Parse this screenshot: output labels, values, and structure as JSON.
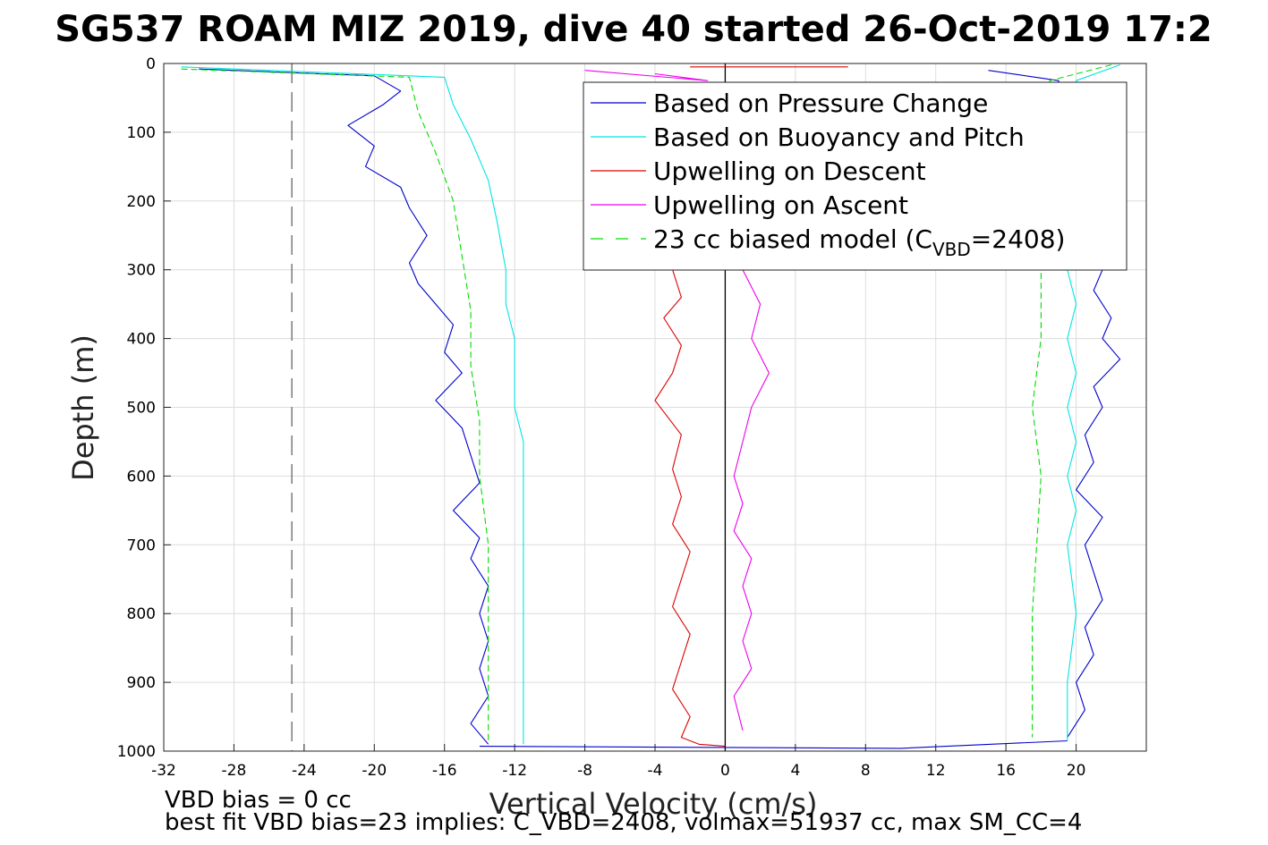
{
  "chart_data": {
    "type": "line",
    "title": "SG537 ROAM MIZ 2019, dive 40 started 26-Oct-2019 17:2",
    "xlabel": "Vertical Velocity (cm/s)",
    "ylabel": "Depth (m)",
    "xlim": [
      -32,
      24
    ],
    "ylim": [
      0,
      1000
    ],
    "y_reversed": true,
    "grid": true,
    "legend_position": "top-right",
    "x_ticks": [
      "-32",
      "-28",
      "-24",
      "-20",
      "-16",
      "-12",
      "-8",
      "-4",
      "0",
      "4",
      "8",
      "12",
      "16",
      "20"
    ],
    "y_ticks": [
      "0",
      "100",
      "200",
      "300",
      "400",
      "500",
      "600",
      "700",
      "800",
      "900",
      "1000"
    ],
    "reference_lines": [
      {
        "type": "vertical",
        "x": -24.7,
        "style": "dashed",
        "color": "#666666"
      },
      {
        "type": "vertical",
        "x": 0,
        "style": "solid",
        "color": "#000000"
      }
    ],
    "legend": {
      "entries": [
        {
          "label": "Based on Pressure Change",
          "color": "#0000cc",
          "style": "solid"
        },
        {
          "label": "Based on Buoyancy and Pitch",
          "color": "#00e5e5",
          "style": "solid"
        },
        {
          "label": "Upwelling on Descent",
          "color": "#dd0000",
          "style": "solid"
        },
        {
          "label": "Upwelling on Ascent",
          "color": "#ee00ee",
          "style": "solid"
        },
        {
          "label_main": "23 cc biased model (C",
          "label_sub": "VBD",
          "label_end": "=2408)",
          "color": "#00dd00",
          "style": "dashed"
        }
      ]
    },
    "series": [
      {
        "name": "Based on Pressure Change",
        "color": "#0000cc",
        "style": "solid",
        "segments": [
          {
            "x": [
              -30,
              -20,
              -18.5,
              -19.5,
              -21.5,
              -20,
              -20.5,
              -18.5,
              -18,
              -17,
              -18,
              -17.5,
              -16.5,
              -15.5,
              -16,
              -15,
              -16.5,
              -15,
              -14.5,
              -14,
              -15.5,
              -14,
              -14.5,
              -13.5,
              -14,
              -13.5,
              -14,
              -13.5,
              -14.5,
              -13.5
            ],
            "y": [
              8,
              18,
              40,
              60,
              90,
              120,
              150,
              180,
              210,
              250,
              290,
              320,
              350,
              380,
              420,
              450,
              490,
              530,
              570,
              610,
              650,
              690,
              720,
              760,
              800,
              840,
              880,
              920,
              960,
              990
            ]
          },
          {
            "x": [
              15,
              19,
              21.5,
              21,
              22,
              21.5,
              22.5,
              21,
              21.5,
              20.5,
              21,
              20,
              21.5,
              20.5,
              21,
              21.5,
              20.5,
              21,
              20,
              20.5,
              19.5
            ],
            "y": [
              10,
              25,
              300,
              330,
              370,
              400,
              430,
              470,
              500,
              540,
              580,
              620,
              660,
              700,
              740,
              780,
              820,
              860,
              900,
              940,
              980
            ]
          },
          {
            "x": [
              -14,
              10,
              19.5
            ],
            "y": [
              993,
              996,
              985
            ]
          }
        ]
      },
      {
        "name": "Based on Buoyancy and Pitch",
        "color": "#00e5e5",
        "style": "solid",
        "segments": [
          {
            "x": [
              -31,
              -16,
              -15.5,
              -14.5,
              -13.5,
              -13,
              -12.5,
              -12.5,
              -12,
              -12,
              -12,
              -11.5,
              -11.5,
              -11.5,
              -11.5,
              -11.5,
              -11.5,
              -11.5
            ],
            "y": [
              5,
              20,
              60,
              110,
              170,
              230,
              300,
              350,
              400,
              450,
              500,
              550,
              600,
              650,
              700,
              800,
              900,
              990
            ]
          },
          {
            "x": [
              22.5,
              20,
              19.5,
              20,
              19.5,
              20,
              19.5,
              20,
              19.5,
              20,
              19.5,
              20,
              19.5,
              19.5
            ],
            "y": [
              2,
              25,
              300,
              350,
              400,
              450,
              500,
              550,
              600,
              650,
              700,
              800,
              900,
              985
            ]
          }
        ]
      },
      {
        "name": "Upwelling on Descent",
        "color": "#dd0000",
        "style": "solid",
        "segments": [
          {
            "x": [
              -3,
              -2.5,
              -3.5,
              -2.5,
              -3,
              -4,
              -2.5,
              -3,
              -2.5,
              -3,
              -2,
              -2.5,
              -3,
              -2,
              -2.5,
              -3,
              -2,
              -2.5,
              -1.5,
              0
            ],
            "y": [
              300,
              340,
              370,
              410,
              450,
              490,
              540,
              590,
              630,
              670,
              710,
              750,
              790,
              830,
              870,
              910,
              950,
              980,
              990,
              993
            ]
          },
          {
            "x": [
              -2,
              7
            ],
            "y": [
              5,
              5
            ]
          }
        ]
      },
      {
        "name": "Upwelling on Ascent",
        "color": "#ee00ee",
        "style": "solid",
        "segments": [
          {
            "x": [
              1,
              2,
              1.5,
              2.5,
              1.5,
              1,
              0.5,
              1,
              0.5,
              1.5,
              1,
              1.5,
              1,
              1.5,
              0.5,
              1
            ],
            "y": [
              300,
              350,
              400,
              450,
              500,
              550,
              600,
              640,
              680,
              720,
              760,
              800,
              840,
              880,
              920,
              970
            ]
          },
          {
            "x": [
              -8,
              -1,
              -4
            ],
            "y": [
              10,
              25,
              15
            ]
          }
        ]
      },
      {
        "name": "23 cc biased model (CVBD=2408)",
        "color": "#00dd00",
        "style": "dashed",
        "segments": [
          {
            "x": [
              -31,
              -18,
              -17.5,
              -16.5,
              -15.5,
              -15,
              -14.5,
              -14.5,
              -14,
              -14,
              -13.5,
              -13.5,
              -13.5,
              -13.5
            ],
            "y": [
              8,
              20,
              70,
              130,
              200,
              280,
              360,
              440,
              520,
              600,
              700,
              800,
              900,
              985
            ]
          },
          {
            "x": [
              22,
              18.5,
              18,
              18,
              17.5,
              18,
              17.5,
              17.5
            ],
            "y": [
              2,
              25,
              300,
              400,
              500,
              600,
              800,
              980
            ]
          }
        ]
      }
    ],
    "annotations": [
      {
        "text": "VBD bias = 0 cc"
      },
      {
        "text": "best fit VBD bias=23 implies: C_VBD=2408, volmax=51937 cc, max SM_CC=4"
      }
    ]
  }
}
